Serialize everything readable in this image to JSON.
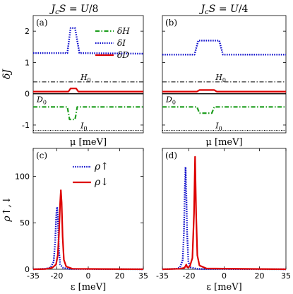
{
  "chart_data": [
    {
      "panel": "(a)",
      "type": "line",
      "title": "J_cS = U/8",
      "xlabel": "μ [meV]",
      "ylabel": "δJ",
      "ylim": [
        -1.25,
        2.5
      ],
      "yticks": [
        -1,
        0,
        1,
        2
      ],
      "xticks": [],
      "x_domain": [
        0,
        1
      ],
      "legend": {
        "placement": "top-right",
        "entries": [
          "δH",
          "δI",
          "δD"
        ]
      },
      "series": [
        {
          "name": "δH",
          "color": "#1f9e1f",
          "style": "dashdot",
          "points": [
            [
              0,
              -0.42
            ],
            [
              0.31,
              -0.42
            ],
            [
              0.33,
              -0.82
            ],
            [
              0.38,
              -0.82
            ],
            [
              0.4,
              -0.42
            ],
            [
              1,
              -0.42
            ]
          ]
        },
        {
          "name": "δI",
          "color": "#1010cc",
          "style": "dotted",
          "points": [
            [
              0,
              1.3
            ],
            [
              0.31,
              1.3
            ],
            [
              0.34,
              2.1
            ],
            [
              0.38,
              2.1
            ],
            [
              0.42,
              1.3
            ],
            [
              1,
              1.28
            ]
          ]
        },
        {
          "name": "δD",
          "color": "#dd0000",
          "style": "solid",
          "points": [
            [
              0,
              0.07
            ],
            [
              0.32,
              0.07
            ],
            [
              0.34,
              0.17
            ],
            [
              0.39,
              0.17
            ],
            [
              0.41,
              0.07
            ],
            [
              1,
              0.07
            ]
          ]
        }
      ],
      "reference_lines": [
        {
          "label": "H_0",
          "y": 0.38,
          "style": "dashdot",
          "color": "#000000"
        },
        {
          "label": "D_0",
          "y": 0.0,
          "style": "solid",
          "color": "#000000"
        },
        {
          "label": "I_0",
          "y": -1.17,
          "style": "dotted",
          "color": "#000000"
        }
      ]
    },
    {
      "panel": "(b)",
      "type": "line",
      "title": "J_cS = U/4",
      "xlabel": "μ [meV]",
      "ylabel": "",
      "ylim": [
        -1.25,
        2.5
      ],
      "yticks": [
        -1,
        0,
        1,
        2
      ],
      "xticks": [],
      "x_domain": [
        0,
        1
      ],
      "series": [
        {
          "name": "δH",
          "color": "#1f9e1f",
          "style": "dashdot",
          "points": [
            [
              0,
              -0.42
            ],
            [
              0.28,
              -0.42
            ],
            [
              0.3,
              -0.62
            ],
            [
              0.4,
              -0.62
            ],
            [
              0.42,
              -0.42
            ],
            [
              1,
              -0.42
            ]
          ]
        },
        {
          "name": "δI",
          "color": "#1010cc",
          "style": "dotted",
          "points": [
            [
              0,
              1.25
            ],
            [
              0.26,
              1.25
            ],
            [
              0.29,
              1.7
            ],
            [
              0.46,
              1.7
            ],
            [
              0.49,
              1.25
            ],
            [
              1,
              1.25
            ]
          ]
        },
        {
          "name": "δD",
          "color": "#dd0000",
          "style": "solid",
          "points": [
            [
              0,
              0.07
            ],
            [
              0.28,
              0.07
            ],
            [
              0.3,
              0.12
            ],
            [
              0.42,
              0.12
            ],
            [
              0.44,
              0.07
            ],
            [
              1,
              0.07
            ]
          ]
        }
      ],
      "reference_lines": [
        {
          "label": "H_0",
          "y": 0.38,
          "style": "dashdot",
          "color": "#000000"
        },
        {
          "label": "D_0",
          "y": 0.0,
          "style": "solid",
          "color": "#000000"
        },
        {
          "label": "I_0",
          "y": -1.17,
          "style": "dotted",
          "color": "#000000"
        }
      ]
    },
    {
      "panel": "(c)",
      "type": "line",
      "title": "",
      "xlabel": "ε [meV]",
      "ylabel": "ρ↑,↓",
      "xlim": [
        -35,
        35
      ],
      "ylim": [
        0,
        130
      ],
      "xticks": [
        -35,
        -20,
        0,
        20,
        35
      ],
      "yticks": [
        0,
        50,
        100
      ],
      "legend": {
        "placement": "top-right",
        "entries": [
          "ρ↑",
          "ρ↓"
        ]
      },
      "series": [
        {
          "name": "ρ↑",
          "color": "#1010cc",
          "style": "dotted",
          "points": [
            [
              -35,
              0
            ],
            [
              -27,
              0.5
            ],
            [
              -24,
              2
            ],
            [
              -22,
              8
            ],
            [
              -21,
              30
            ],
            [
              -20.3,
              60
            ],
            [
              -19.8,
              67
            ],
            [
              -19.2,
              50
            ],
            [
              -18.6,
              20
            ],
            [
              -17.8,
              5
            ],
            [
              -16,
              1.5
            ],
            [
              -12,
              0.3
            ],
            [
              35,
              0
            ]
          ]
        },
        {
          "name": "ρ↓",
          "color": "#dd0000",
          "style": "solid",
          "points": [
            [
              -35,
              0
            ],
            [
              -27,
              0.3
            ],
            [
              -23,
              1.5
            ],
            [
              -20.5,
              5
            ],
            [
              -19.4,
              15
            ],
            [
              -18.6,
              38
            ],
            [
              -17.9,
              70
            ],
            [
              -17.4,
              85
            ],
            [
              -16.9,
              72
            ],
            [
              -16.3,
              35
            ],
            [
              -15.5,
              10
            ],
            [
              -14,
              3
            ],
            [
              -10,
              0.5
            ],
            [
              35,
              0
            ]
          ]
        }
      ]
    },
    {
      "panel": "(d)",
      "type": "line",
      "title": "",
      "xlabel": "ε [meV]",
      "ylabel": "",
      "xlim": [
        -35,
        35
      ],
      "ylim": [
        0,
        130
      ],
      "xticks": [
        -35,
        -20,
        0,
        20,
        35
      ],
      "yticks": [],
      "series": [
        {
          "name": "ρ↑",
          "color": "#1010cc",
          "style": "dotted",
          "points": [
            [
              -35,
              0
            ],
            [
              -27,
              0.5
            ],
            [
              -25,
              2
            ],
            [
              -23.5,
              10
            ],
            [
              -22.8,
              40
            ],
            [
              -22.3,
              85
            ],
            [
              -21.9,
              110
            ],
            [
              -21.5,
              85
            ],
            [
              -21,
              40
            ],
            [
              -20.3,
              8
            ],
            [
              -19,
              2
            ],
            [
              -15,
              0.3
            ],
            [
              35,
              0
            ]
          ]
        },
        {
          "name": "ρ↓",
          "color": "#dd0000",
          "style": "solid",
          "points": [
            [
              -35,
              0
            ],
            [
              -25,
              0.5
            ],
            [
              -22.5,
              1.5
            ],
            [
              -21.5,
              5
            ],
            [
              -20.8,
              2
            ],
            [
              -19.5,
              3
            ],
            [
              -18,
              12
            ],
            [
              -17.1,
              60
            ],
            [
              -16.5,
              121
            ],
            [
              -15.9,
              60
            ],
            [
              -15.2,
              15
            ],
            [
              -14,
              4
            ],
            [
              -10,
              0.8
            ],
            [
              35,
              0
            ]
          ]
        }
      ]
    }
  ]
}
